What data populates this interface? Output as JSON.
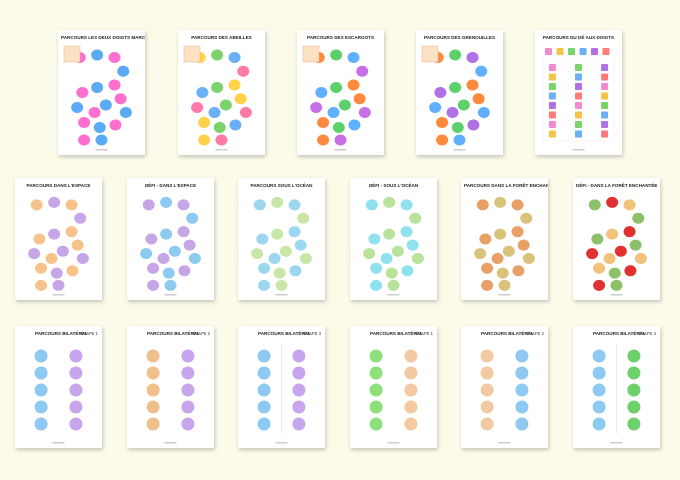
{
  "rows": [
    {
      "cards": [
        {
          "title": "PARCOURS LES DEUX DOIGTS MARCHEURS"
        },
        {
          "title": "PARCOURS DES ABEILLES"
        },
        {
          "title": "PARCOURS DES ESCARGOTS"
        },
        {
          "title": "PARCOURS DES GRENOUILLES"
        },
        {
          "title": "PARCOURS DU DÉ AUX DOIGTS"
        }
      ]
    },
    {
      "cards": [
        {
          "title": "PARCOURS DANS L'ESPACE"
        },
        {
          "title": "DÉFI - DANS L'ESPACE"
        },
        {
          "title": "PARCOURS SOUS L'OCÉAN"
        },
        {
          "title": "DÉFI - SOUS L'OCÉAN"
        },
        {
          "title": "PARCOURS DANS LA FORÊT ENCHANTÉE"
        },
        {
          "title": "DÉFI - DANS LA FORÊT ENCHANTÉE"
        }
      ]
    },
    {
      "cards": [
        {
          "title": "PARCOURS BILATÉRAL",
          "level": "ÉTAPE 1"
        },
        {
          "title": "PARCOURS BILATÉRAL",
          "level": "ÉTAPE 2"
        },
        {
          "title": "PARCOURS BILATÉRAL",
          "level": "ÉTAPE 3"
        },
        {
          "title": "PARCOURS BILATÉRAL",
          "level": "ÉTAPE 1"
        },
        {
          "title": "PARCOURS BILATÉRAL",
          "level": "ÉTAPE 2"
        },
        {
          "title": "PARCOURS BILATÉRAL",
          "level": "ÉTAPE 3"
        }
      ]
    }
  ]
}
